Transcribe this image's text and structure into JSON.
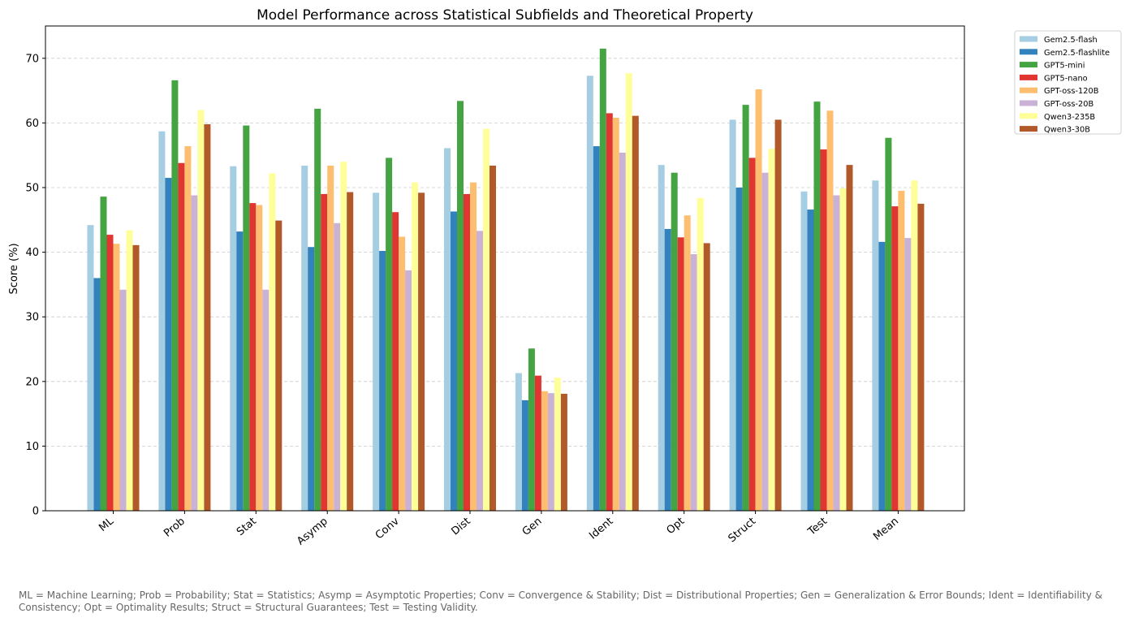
{
  "chart_data": {
    "type": "bar",
    "title": "Model Performance across Statistical Subfields and Theoretical Property",
    "xlabel": "",
    "ylabel": "Score (%)",
    "ylim": [
      0,
      75
    ],
    "yticks": [
      0,
      10,
      20,
      30,
      40,
      50,
      60,
      70
    ],
    "grid": "y-dashed",
    "legend_position": "outside-top-right",
    "categories": [
      "ML",
      "Prob",
      "Stat",
      "Asymp",
      "Conv",
      "Dist",
      "Gen",
      "Ident",
      "Opt",
      "Struct",
      "Test",
      "Mean"
    ],
    "series": [
      {
        "name": "Gem2.5-flash",
        "color": "#a6cee3",
        "values": [
          44.2,
          58.7,
          53.3,
          53.4,
          49.2,
          56.1,
          21.3,
          67.3,
          53.5,
          60.5,
          49.4,
          51.1
        ]
      },
      {
        "name": "Gem2.5-flashlite",
        "color": "#3182bd",
        "values": [
          36.0,
          51.5,
          43.2,
          40.8,
          40.2,
          46.3,
          17.1,
          56.4,
          43.6,
          50.0,
          46.6,
          41.6
        ]
      },
      {
        "name": "GPT5-mini",
        "color": "#43a441",
        "values": [
          48.6,
          66.6,
          59.6,
          62.2,
          54.6,
          63.4,
          25.1,
          71.5,
          52.3,
          62.8,
          63.3,
          57.7
        ]
      },
      {
        "name": "GPT5-nano",
        "color": "#e03530",
        "values": [
          42.7,
          53.8,
          47.6,
          49.0,
          46.2,
          49.0,
          20.9,
          61.5,
          42.3,
          54.6,
          55.9,
          47.1
        ]
      },
      {
        "name": "GPT-oss-120B",
        "color": "#fdbf6f",
        "values": [
          41.3,
          56.4,
          47.3,
          53.4,
          42.4,
          50.8,
          18.5,
          60.8,
          45.7,
          65.2,
          61.9,
          49.5
        ]
      },
      {
        "name": "GPT-oss-20B",
        "color": "#cab2d6",
        "values": [
          34.2,
          48.8,
          34.2,
          44.5,
          37.2,
          43.3,
          18.2,
          55.4,
          39.7,
          52.3,
          48.8,
          42.2
        ]
      },
      {
        "name": "Qwen3-235B",
        "color": "#ffff99",
        "values": [
          43.4,
          62.0,
          52.2,
          54.0,
          50.8,
          59.1,
          20.6,
          67.7,
          48.4,
          56.0,
          49.9,
          51.1
        ]
      },
      {
        "name": "Qwen3-30B",
        "color": "#b15928",
        "values": [
          41.1,
          59.8,
          44.9,
          49.3,
          49.2,
          53.4,
          18.1,
          61.1,
          41.4,
          60.5,
          53.5,
          47.5
        ]
      }
    ]
  },
  "footnote": "ML = Machine Learning;  Prob = Probability;  Stat = Statistics;  Asymp = Asymptotic Properties;  Conv = Convergence & Stability;  Dist = Distributional Properties;  Gen = Generalization & Error Bounds;  Ident = Identifiability & Consistency;  Opt = Optimality Results;  Struct = Structural Guarantees;  Test = Testing Validity."
}
